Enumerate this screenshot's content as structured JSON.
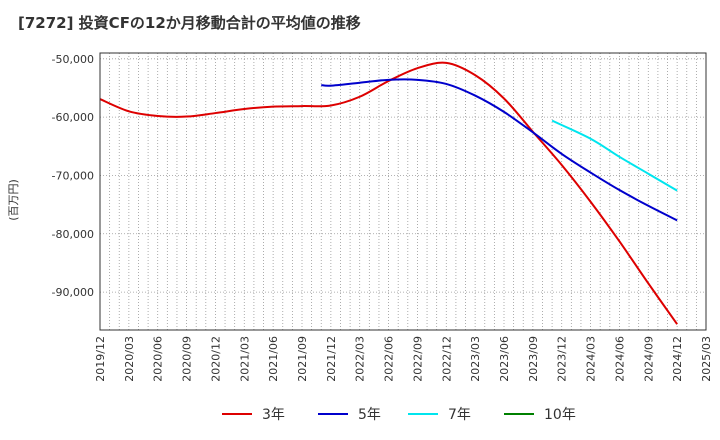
{
  "title": "[7272]  投資CFの12か月移動合計の平均値の推移",
  "chart_data": {
    "type": "line",
    "ylabel": "(百万円)",
    "ylim": [
      -96500,
      -49000
    ],
    "yticks": [
      -50000,
      -60000,
      -70000,
      -80000,
      -90000
    ],
    "ytick_labels": [
      "-50,000",
      "-60,000",
      "-70,000",
      "-80,000",
      "-90,000"
    ],
    "xticks": [
      "2019/12",
      "2020/03",
      "2020/06",
      "2020/09",
      "2020/12",
      "2021/03",
      "2021/06",
      "2021/09",
      "2021/12",
      "2022/03",
      "2022/06",
      "2022/09",
      "2022/12",
      "2023/03",
      "2023/06",
      "2023/09",
      "2023/12",
      "2024/03",
      "2024/06",
      "2024/09",
      "2024/12",
      "2025/03"
    ],
    "grid": true,
    "legend_position": "bottom",
    "series": [
      {
        "name": "3年",
        "color": "#dd0000",
        "x": [
          "2019/12",
          "2020/03",
          "2020/06",
          "2020/09",
          "2020/12",
          "2021/03",
          "2021/06",
          "2021/09",
          "2021/12",
          "2022/03",
          "2022/06",
          "2022/09",
          "2022/12",
          "2023/03",
          "2023/06",
          "2023/09",
          "2023/12",
          "2024/03",
          "2024/06",
          "2024/09",
          "2024/12"
        ],
        "values": [
          -56900,
          -59000,
          -59800,
          -59900,
          -59300,
          -58600,
          -58200,
          -58100,
          -58000,
          -56500,
          -53800,
          -51600,
          -50700,
          -52800,
          -56800,
          -62500,
          -68200,
          -74500,
          -81300,
          -88500,
          -95500
        ]
      },
      {
        "name": "5年",
        "color": "#0000cc",
        "x": [
          "2021/11",
          "2021/12",
          "2022/03",
          "2022/06",
          "2022/09",
          "2022/12",
          "2023/03",
          "2023/06",
          "2023/09",
          "2023/12",
          "2024/03",
          "2024/06",
          "2024/09",
          "2024/12"
        ],
        "values": [
          -54500,
          -54600,
          -54100,
          -53600,
          -53600,
          -54300,
          -56300,
          -59100,
          -62600,
          -66300,
          -69500,
          -72500,
          -75200,
          -77700
        ]
      },
      {
        "name": "7年",
        "color": "#00e5ee",
        "x": [
          "2023/11",
          "2024/03",
          "2024/06",
          "2024/09",
          "2024/12"
        ],
        "values": [
          -60600,
          -63700,
          -66800,
          -69700,
          -72600
        ]
      },
      {
        "name": "10年",
        "color": "#008000",
        "x": [],
        "values": []
      }
    ]
  }
}
